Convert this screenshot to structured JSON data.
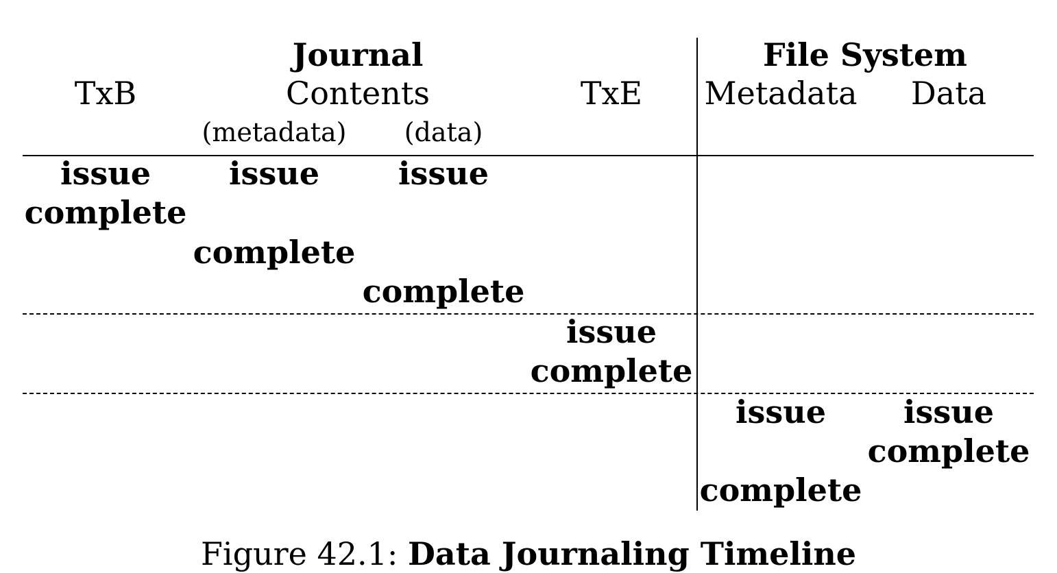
{
  "headers": {
    "journal": "Journal",
    "file_system": "File System",
    "txb": "TxB",
    "contents": "Contents",
    "txe": "TxE",
    "metadata": "Metadata",
    "data": "Data",
    "contents_metadata": "(metadata)",
    "contents_data": "(data)"
  },
  "events": {
    "txb_issue": "issue",
    "txb_complete": "complete",
    "meta_issue": "issue",
    "meta_complete": "complete",
    "data_issue": "issue",
    "data_complete": "complete",
    "txe_issue": "issue",
    "txe_complete": "complete",
    "fs_meta_issue": "issue",
    "fs_meta_complete": "complete",
    "fs_data_issue": "issue",
    "fs_data_complete": "complete"
  },
  "caption": {
    "label": "Figure 42.1:",
    "title": "Data Journaling Timeline"
  }
}
